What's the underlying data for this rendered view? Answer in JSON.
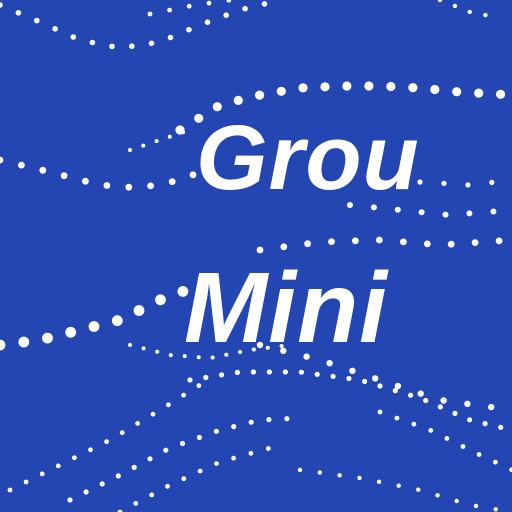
{
  "banner": {
    "line1": "Grou",
    "line2": "Mini"
  },
  "colors": {
    "background": "#2446b3",
    "text": "#ffffff",
    "dots": "#ffffff"
  }
}
